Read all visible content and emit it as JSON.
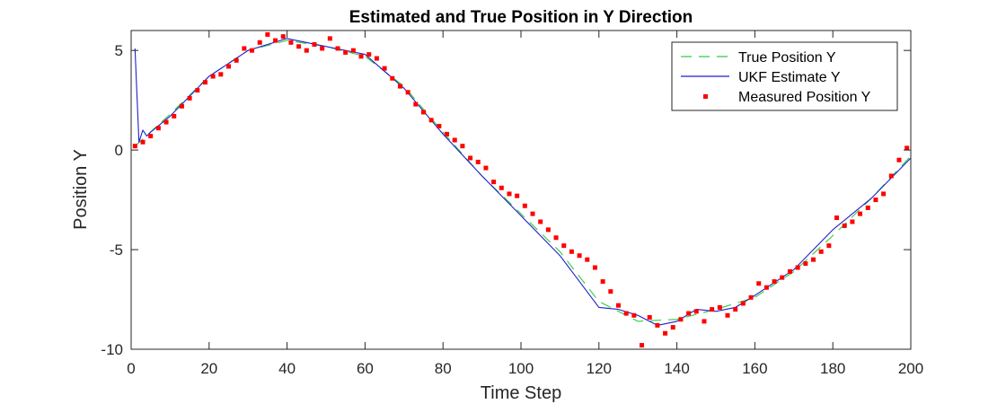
{
  "chart_data": {
    "type": "line",
    "title": "Estimated and True Position in Y Direction",
    "xlabel": "Time Step",
    "ylabel": "Position Y",
    "xlim": [
      0,
      200
    ],
    "ylim": [
      -10,
      6
    ],
    "xticks": [
      0,
      20,
      40,
      60,
      80,
      100,
      120,
      140,
      160,
      180,
      200
    ],
    "yticks": [
      -10,
      -5,
      0,
      5
    ],
    "grid": false,
    "legend_position": "top-right",
    "series": [
      {
        "name": "True Position Y",
        "style": "dashed-line",
        "color": "#2ecc40",
        "x": [
          1,
          10,
          20,
          30,
          40,
          50,
          60,
          70,
          80,
          90,
          100,
          110,
          120,
          130,
          140,
          150,
          160,
          170,
          180,
          190,
          200
        ],
        "y": [
          0.2,
          1.8,
          3.7,
          5.0,
          5.5,
          5.2,
          4.7,
          3.2,
          0.9,
          -1.3,
          -3.2,
          -5.1,
          -7.6,
          -8.6,
          -8.5,
          -8.0,
          -7.4,
          -6.1,
          -4.3,
          -2.4,
          -0.3
        ]
      },
      {
        "name": "UKF Estimate Y",
        "style": "solid-line",
        "color": "#1f1fcc",
        "x": [
          1,
          2,
          3,
          4,
          5,
          10,
          20,
          30,
          40,
          50,
          60,
          70,
          80,
          90,
          100,
          110,
          120,
          125,
          130,
          135,
          140,
          145,
          150,
          155,
          160,
          170,
          180,
          190,
          200
        ],
        "y": [
          5.1,
          0.4,
          1.0,
          0.7,
          0.9,
          1.7,
          3.7,
          5.0,
          5.6,
          5.2,
          4.8,
          3.1,
          0.8,
          -1.3,
          -3.3,
          -5.3,
          -7.9,
          -8.0,
          -8.3,
          -8.8,
          -8.6,
          -8.0,
          -8.1,
          -7.9,
          -7.3,
          -6.0,
          -4.0,
          -2.4,
          -0.4
        ]
      },
      {
        "name": "Measured Position Y",
        "style": "markers",
        "color": "#ff0000",
        "x": [
          1,
          3,
          5,
          7,
          9,
          11,
          13,
          15,
          17,
          19,
          21,
          23,
          25,
          27,
          29,
          31,
          33,
          35,
          37,
          39,
          41,
          43,
          45,
          47,
          49,
          51,
          53,
          55,
          57,
          59,
          61,
          63,
          65,
          67,
          69,
          71,
          73,
          75,
          77,
          79,
          81,
          83,
          85,
          87,
          89,
          91,
          93,
          95,
          97,
          99,
          101,
          103,
          105,
          107,
          109,
          111,
          113,
          115,
          117,
          119,
          121,
          123,
          125,
          127,
          129,
          131,
          133,
          135,
          137,
          139,
          141,
          143,
          145,
          147,
          149,
          151,
          153,
          155,
          157,
          159,
          161,
          163,
          165,
          167,
          169,
          171,
          173,
          175,
          177,
          179,
          181,
          183,
          185,
          187,
          189,
          191,
          193,
          195,
          197,
          199
        ],
        "y": [
          0.2,
          0.4,
          0.7,
          1.1,
          1.4,
          1.7,
          2.2,
          2.6,
          3.0,
          3.4,
          3.7,
          3.8,
          4.2,
          4.5,
          5.1,
          5.0,
          5.4,
          5.8,
          5.5,
          5.7,
          5.4,
          5.2,
          5.0,
          5.3,
          5.1,
          5.6,
          5.1,
          4.9,
          5.0,
          4.7,
          4.8,
          4.6,
          4.1,
          3.6,
          3.2,
          2.9,
          2.3,
          1.9,
          1.5,
          1.2,
          0.8,
          0.5,
          0.2,
          -0.4,
          -0.6,
          -0.9,
          -1.6,
          -1.9,
          -2.2,
          -2.3,
          -2.8,
          -3.2,
          -3.6,
          -4.0,
          -4.4,
          -4.8,
          -5.1,
          -5.3,
          -5.5,
          -5.9,
          -6.6,
          -7.1,
          -7.8,
          -8.2,
          -8.3,
          -9.8,
          -8.4,
          -8.8,
          -9.2,
          -8.9,
          -8.5,
          -8.2,
          -8.1,
          -8.6,
          -8.0,
          -7.9,
          -8.3,
          -8.0,
          -7.7,
          -7.4,
          -6.7,
          -6.9,
          -6.6,
          -6.4,
          -6.1,
          -5.9,
          -5.7,
          -5.5,
          -5.1,
          -4.8,
          -3.4,
          -3.8,
          -3.6,
          -3.2,
          -2.9,
          -2.5,
          -2.2,
          -1.3,
          -0.5,
          0.1
        ]
      }
    ]
  }
}
